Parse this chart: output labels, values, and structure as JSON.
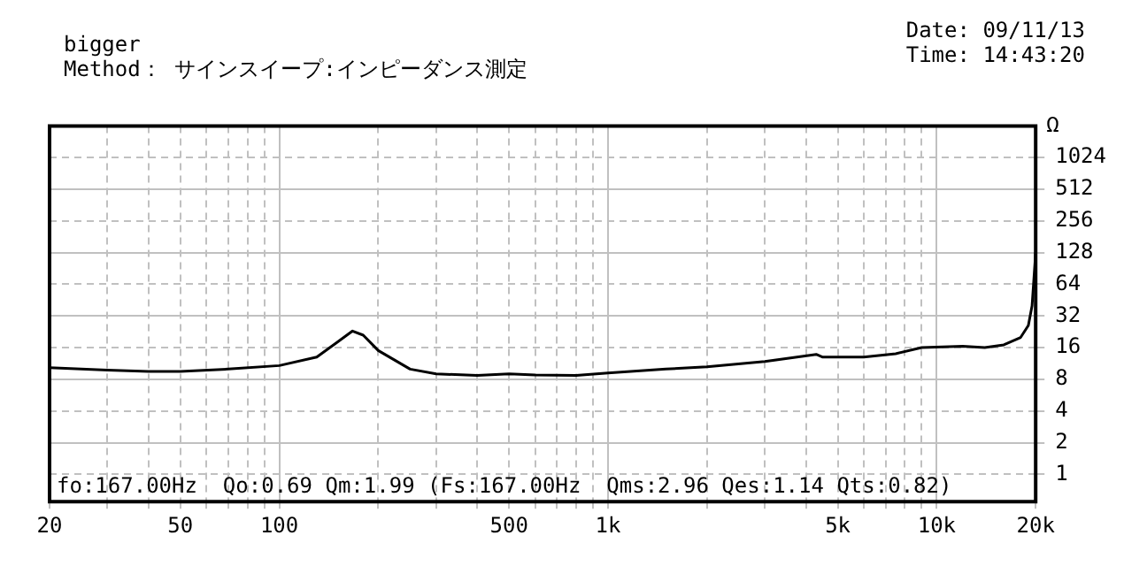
{
  "chart_data": {
    "type": "line",
    "subtitle": "bigger",
    "ylabel": "Ω",
    "annotations": [
      "fo:167.00Hz  Qo:0.69 Qm:1.99 (Fs:167.00Hz  Qms:2.96 Qes:1.14 Qts:0.82)",
      "Method： サインスイープ:インピーダンス測定",
      "Date: 09/11/13",
      "Time: 14:43:20"
    ],
    "x": [
      20,
      30,
      40,
      50,
      70,
      100,
      130,
      150,
      167,
      180,
      200,
      250,
      300,
      400,
      500,
      600,
      800,
      1000,
      1500,
      2000,
      3000,
      4300,
      4500,
      6000,
      7500,
      9000,
      12000,
      14000,
      16000,
      18000,
      19000,
      19500,
      20000
    ],
    "series": [
      {
        "color": "#000000",
        "values": [
          10.3,
          9.8,
          9.5,
          9.5,
          10,
          10.8,
          13,
          18,
          23,
          21,
          15,
          10,
          9,
          8.7,
          9,
          8.8,
          8.7,
          9.2,
          10,
          10.5,
          11.8,
          13.8,
          13,
          13,
          14,
          16,
          16.5,
          16,
          17,
          20,
          26,
          40,
          128
        ]
      }
    ],
    "log": "xy",
    "xlim": [
      20,
      20000
    ],
    "ylim": [
      0.55,
      2048
    ],
    "xticks": [
      20,
      {
        "value": 30,
        "label": null
      },
      {
        "value": 40,
        "label": null
      },
      50,
      {
        "value": 60,
        "label": null
      },
      {
        "value": 70,
        "label": null
      },
      {
        "value": 80,
        "label": null
      },
      {
        "value": 90,
        "label": null
      },
      100,
      {
        "value": 200,
        "label": null
      },
      {
        "value": 300,
        "label": null
      },
      {
        "value": 400,
        "label": null
      },
      500,
      {
        "value": 600,
        "label": null
      },
      {
        "value": 700,
        "label": null
      },
      {
        "value": 800,
        "label": null
      },
      {
        "value": 900,
        "label": null
      },
      {
        "value": 1000,
        "label": "1k"
      },
      {
        "value": 2000,
        "label": null
      },
      {
        "value": 3000,
        "label": null
      },
      {
        "value": 4000,
        "label": null
      },
      {
        "value": 5000,
        "label": "5k"
      },
      {
        "value": 6000,
        "label": null
      },
      {
        "value": 7000,
        "label": null
      },
      {
        "value": 8000,
        "label": null
      },
      {
        "value": 9000,
        "label": null
      },
      {
        "value": 10000,
        "label": "10k"
      },
      {
        "value": 20000,
        "label": "20k"
      }
    ],
    "yticks": [
      1,
      2,
      4,
      8,
      16,
      32,
      64,
      128,
      256,
      512,
      1024
    ],
    "grid": true,
    "marker": "none",
    "line_style": "solid"
  }
}
